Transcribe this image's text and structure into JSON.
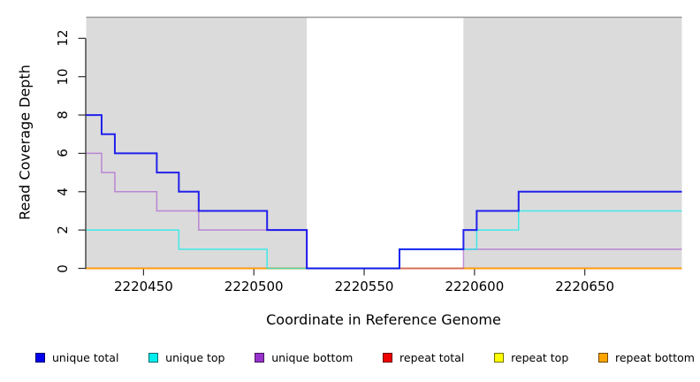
{
  "chart_data": {
    "type": "line",
    "subtype": "step",
    "title": "",
    "xlabel": "Coordinate in Reference Genome",
    "ylabel": "Read Coverage Depth",
    "xlim": [
      2220424,
      2220694
    ],
    "ylim": [
      0,
      13.1
    ],
    "x_ticks": [
      "2220450",
      "2220500",
      "2220550",
      "2220600",
      "2220650"
    ],
    "x_tick_values": [
      2220450,
      2220500,
      2220550,
      2220600,
      2220650
    ],
    "y_ticks": [
      "0",
      "2",
      "4",
      "6",
      "8",
      "10",
      "12"
    ],
    "y_tick_values": [
      0,
      2,
      4,
      6,
      8,
      10,
      12
    ],
    "grid": false,
    "legend_position": "bottom",
    "plot_background": "#ffffff",
    "shaded_region_color": "#dbdbdb",
    "shaded_regions": [
      {
        "from": 2220424,
        "to": 2220524
      },
      {
        "from": 2220595,
        "to": 2220694
      }
    ],
    "series": [
      {
        "name": "unique total",
        "color": "#0000EE",
        "opacity": 0.85,
        "width": 2.0,
        "z": 6,
        "steps": [
          [
            2220424,
            8
          ],
          [
            2220431,
            7
          ],
          [
            2220437,
            6
          ],
          [
            2220456,
            5
          ],
          [
            2220466,
            4
          ],
          [
            2220475,
            3
          ],
          [
            2220506,
            2
          ],
          [
            2220524,
            0
          ],
          [
            2220566,
            1
          ],
          [
            2220595,
            2
          ],
          [
            2220601,
            3
          ],
          [
            2220620,
            4
          ]
        ]
      },
      {
        "name": "unique top",
        "color": "#00EEEE",
        "opacity": 0.7,
        "width": 1.5,
        "z": 5,
        "steps": [
          [
            2220424,
            2
          ],
          [
            2220466,
            1
          ],
          [
            2220506,
            0
          ],
          [
            2220566,
            1
          ],
          [
            2220601,
            2
          ],
          [
            2220620,
            3
          ]
        ]
      },
      {
        "name": "unique bottom",
        "color": "#9932CC",
        "opacity": 0.5,
        "width": 1.5,
        "z": 4,
        "steps": [
          [
            2220424,
            6
          ],
          [
            2220431,
            5
          ],
          [
            2220437,
            4
          ],
          [
            2220456,
            3
          ],
          [
            2220475,
            2
          ],
          [
            2220524,
            0
          ],
          [
            2220595,
            1
          ]
        ]
      },
      {
        "name": "repeat total",
        "color": "#EE0000",
        "opacity": 1,
        "width": 1.5,
        "z": 2,
        "steps": [
          [
            2220424,
            0
          ]
        ]
      },
      {
        "name": "repeat top",
        "color": "#FFFF00",
        "opacity": 1,
        "width": 1.5,
        "z": 1,
        "steps": [
          [
            2220424,
            0
          ]
        ]
      },
      {
        "name": "repeat bottom",
        "color": "#FFA500",
        "opacity": 1,
        "width": 1.5,
        "z": 3,
        "steps": [
          [
            2220424,
            0
          ]
        ]
      }
    ]
  }
}
